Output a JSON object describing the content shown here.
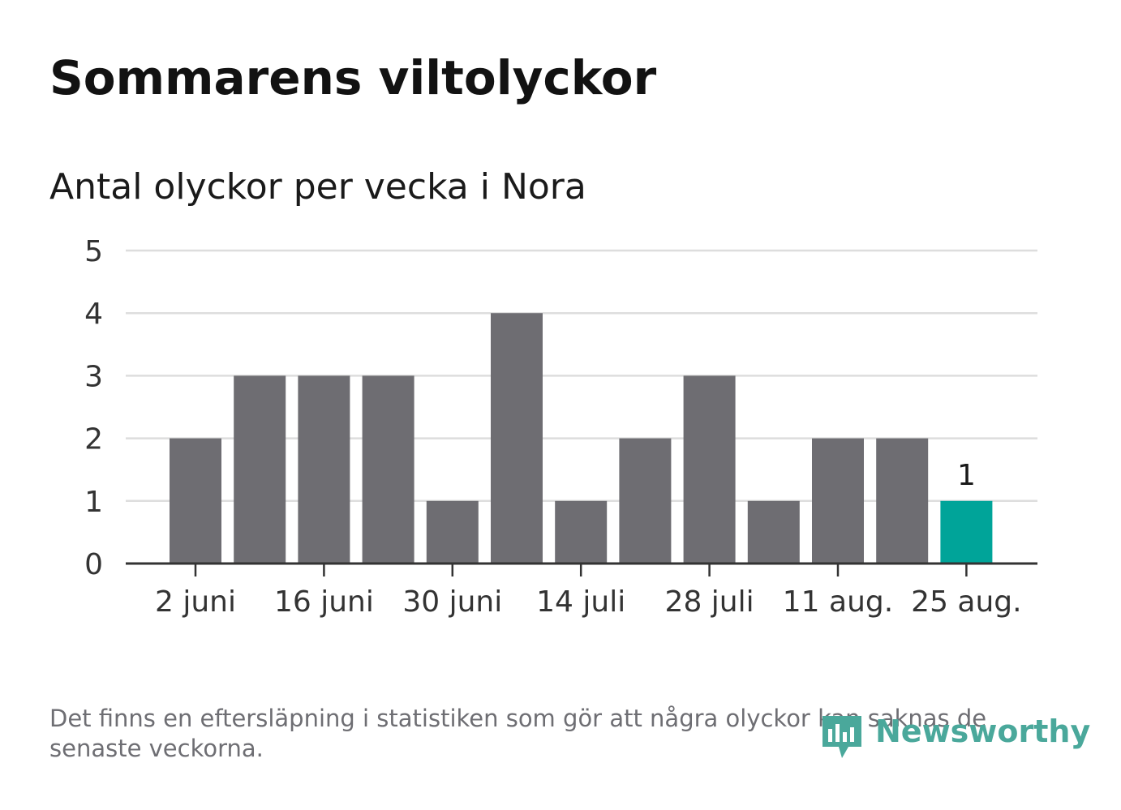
{
  "title": "Sommarens viltolyckor",
  "subtitle": "Antal olyckor per vecka i Nora",
  "footnote": "Det finns en eftersläpning i statistiken som gör att några olyckor kan saknas de senaste veckorna.",
  "brand": "Newsworthy",
  "colors": {
    "bar": "#6e6d72",
    "highlight": "#00a499",
    "grid": "#dddddd",
    "axis": "#333333",
    "brand": "#4aa89b"
  },
  "chart_data": {
    "type": "bar",
    "x": [
      "2019-06-02",
      "2019-06-09",
      "2019-06-16",
      "2019-06-23",
      "2019-06-30",
      "2019-07-07",
      "2019-07-14",
      "2019-07-21",
      "2019-07-28",
      "2019-08-04",
      "2019-08-11",
      "2019-08-18",
      "2019-08-25"
    ],
    "values": [
      2,
      3,
      3,
      3,
      1,
      4,
      1,
      2,
      3,
      1,
      2,
      2,
      1
    ],
    "highlight_index": 12,
    "data_labels": [
      {
        "index": 12,
        "text": "1"
      }
    ],
    "xtick_labels": [
      "2 juni",
      "16 juni",
      "30 juni",
      "14 juli",
      "28 juli",
      "11 aug.",
      "25 aug."
    ],
    "xtick_indices": [
      0,
      2,
      4,
      6,
      8,
      10,
      12
    ],
    "yticks": [
      0,
      1,
      2,
      3,
      4,
      5
    ],
    "ylim": [
      0,
      5
    ],
    "grid": true,
    "legend": "none"
  }
}
